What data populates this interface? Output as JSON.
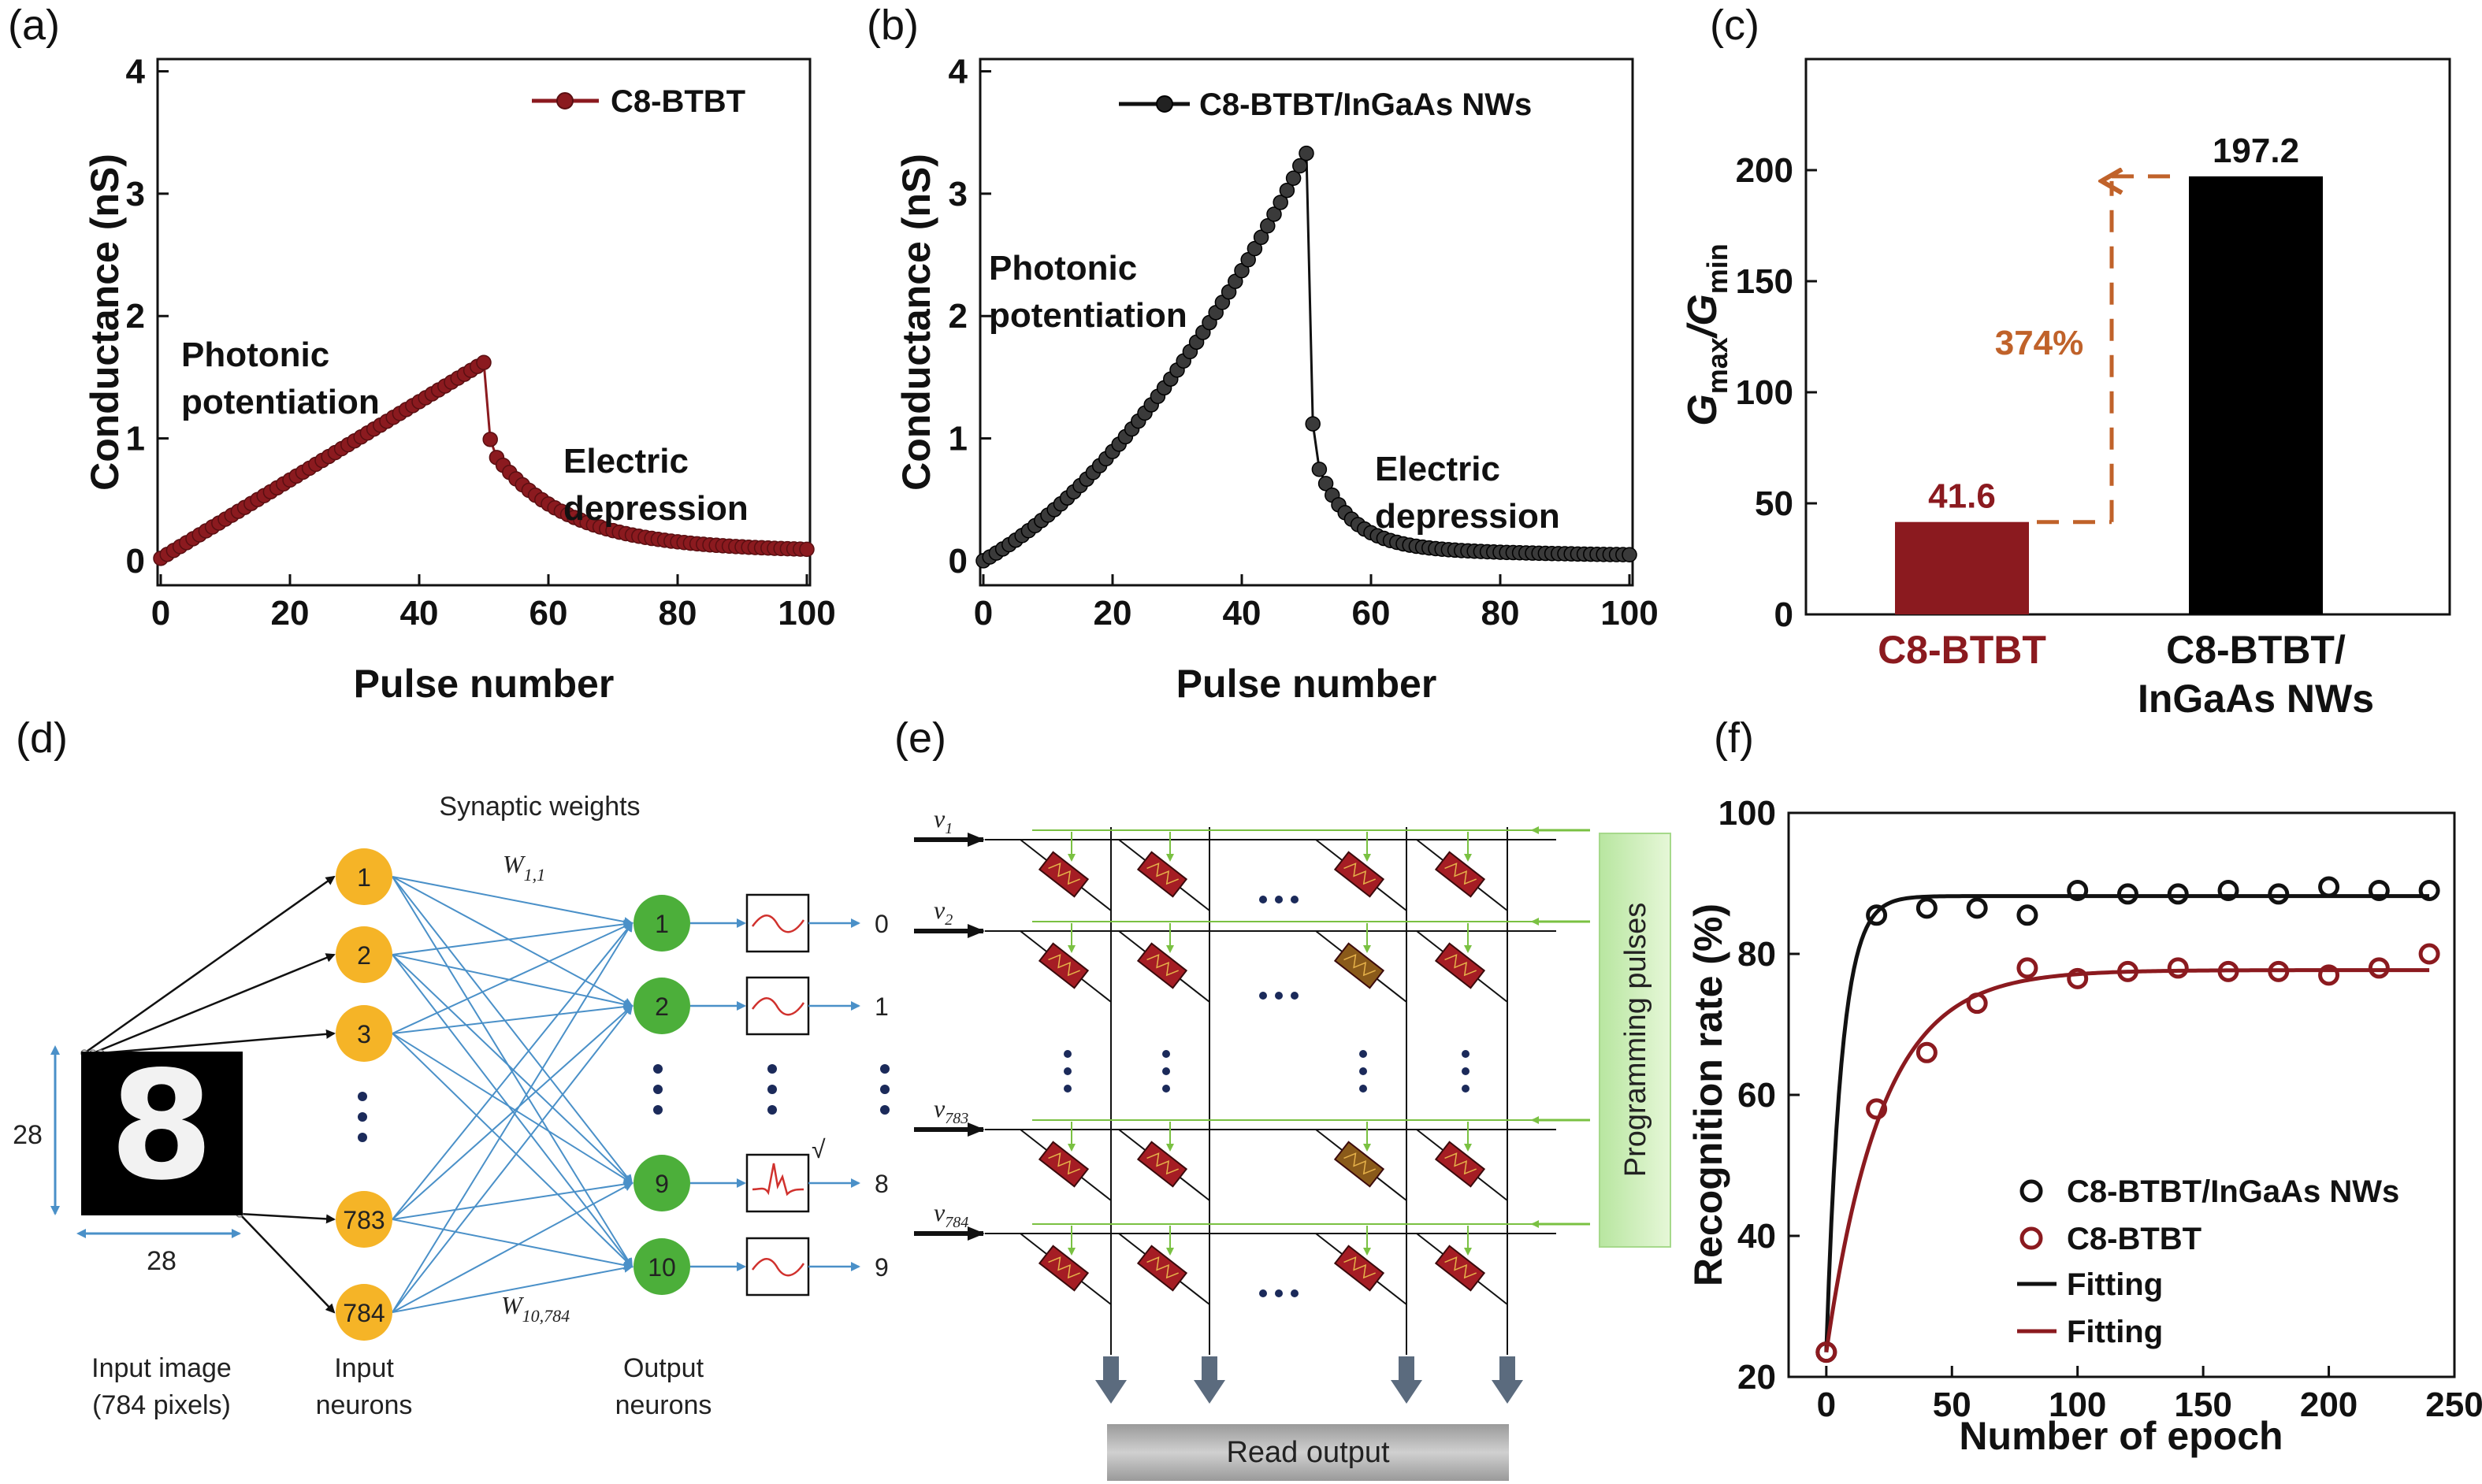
{
  "panels": {
    "a": "(a)",
    "b": "(b)",
    "c": "(c)",
    "d": "(d)",
    "e": "(e)",
    "f": "(f)"
  },
  "colors": {
    "red": "#8b1a1f",
    "black": "#111111",
    "orange_arrow": "#c0622a",
    "orange_node": "#f5b427",
    "green_node": "#4caf3a",
    "line_blue": "#4a90c8"
  },
  "chart_data": [
    {
      "id": "a",
      "type": "scatter",
      "title": "",
      "xlabel": "Pulse number",
      "ylabel": "Conductance (nS)",
      "xlim": [
        0,
        100
      ],
      "ylim": [
        -0.2,
        4.1
      ],
      "xticks": [
        "0",
        "20",
        "40",
        "60",
        "80",
        "100"
      ],
      "yticks": [
        "0",
        "1",
        "2",
        "3",
        "4"
      ],
      "legend": "C8-BTBT",
      "series": [
        {
          "name": "C8-BTBT",
          "color": "#8b1a1f",
          "peak_pulse": 50,
          "start": 0.02,
          "peak": 1.62,
          "end": 0.05
        }
      ],
      "annotations": {
        "potentiation": [
          "Photonic",
          "potentiation"
        ],
        "depression": [
          "Electric",
          "depression"
        ]
      }
    },
    {
      "id": "b",
      "type": "scatter",
      "title": "",
      "xlabel": "Pulse number",
      "ylabel": "Conductance (nS)",
      "xlim": [
        0,
        100
      ],
      "ylim": [
        -0.2,
        4.1
      ],
      "xticks": [
        "0",
        "20",
        "40",
        "60",
        "80",
        "100"
      ],
      "yticks": [
        "0",
        "1",
        "2",
        "3",
        "4"
      ],
      "legend": "C8-BTBT/InGaAs NWs",
      "series": [
        {
          "name": "C8-BTBT/InGaAs NWs",
          "color": "#111111",
          "peak_pulse": 50,
          "start": 0.0,
          "peak": 3.33,
          "end": 0.03
        }
      ],
      "annotations": {
        "potentiation": [
          "Photonic",
          "potentiation"
        ],
        "depression": [
          "Electric",
          "depression"
        ]
      }
    },
    {
      "id": "c",
      "type": "bar",
      "title": "",
      "ylabel_main": "G",
      "ylabel_sub1": "max",
      "ylabel_sep": "/G",
      "ylabel_sub2": "min",
      "ylim": [
        0,
        250
      ],
      "yticks": [
        "0",
        "50",
        "100",
        "150",
        "200"
      ],
      "categories": [
        "C8-BTBT",
        "C8-BTBT/ InGaAs NWs"
      ],
      "category_lines": [
        [
          "C8-BTBT"
        ],
        [
          "C8-BTBT/",
          "InGaAs NWs"
        ]
      ],
      "values": [
        41.6,
        197.2
      ],
      "value_labels": [
        "41.6",
        "197.2"
      ],
      "colors": [
        "#8b1a1f",
        "#000000"
      ],
      "increase_label": "374%"
    },
    {
      "id": "f",
      "type": "scatter",
      "title": "",
      "xlabel": "Number of epoch",
      "ylabel": "Recognition rate (%)",
      "xlim": [
        -15,
        250
      ],
      "ylim": [
        20,
        100
      ],
      "xticks": [
        "0",
        "50",
        "100",
        "150",
        "200",
        "250"
      ],
      "yticks": [
        "20",
        "40",
        "60",
        "80",
        "100"
      ],
      "series": [
        {
          "name": "C8-BTBT/InGaAs NWs",
          "color": "#111111",
          "x": [
            0,
            20,
            40,
            60,
            80,
            100,
            120,
            140,
            160,
            180,
            200,
            220,
            240
          ],
          "y": [
            23.5,
            85.5,
            86.5,
            86.5,
            85.5,
            89,
            88.5,
            88.5,
            89,
            88.5,
            89.5,
            89,
            89
          ]
        },
        {
          "name": "C8-BTBT",
          "color": "#8b1a1f",
          "x": [
            0,
            20,
            40,
            60,
            80,
            100,
            120,
            140,
            160,
            180,
            200,
            220,
            240
          ],
          "y": [
            23.5,
            58,
            66,
            73,
            78,
            76.5,
            77.5,
            78,
            77.5,
            77.5,
            77,
            78,
            80
          ]
        }
      ],
      "fits": [
        {
          "name": "Fitting",
          "color": "#111111",
          "y0": 23.5,
          "yinf": 88.2,
          "tau": 6
        },
        {
          "name": "Fitting",
          "color": "#8b1a1f",
          "y0": 23.5,
          "yinf": 77.7,
          "tau": 22
        }
      ],
      "legend": [
        "C8-BTBT/InGaAs NWs",
        "C8-BTBT",
        "Fitting",
        "Fitting"
      ]
    }
  ],
  "panel_d": {
    "title": "Synaptic weights",
    "input_nodes": [
      "1",
      "2",
      "3",
      "783",
      "784"
    ],
    "output_nodes": [
      "1",
      "2",
      "9",
      "10"
    ],
    "outputs": [
      "0",
      "1",
      "8",
      "9"
    ],
    "check": "√",
    "w_first": "W",
    "w_first_sub": "1,1",
    "w_last": "W",
    "w_last_sub": "10,784",
    "image_size_v": "28",
    "image_size_h": "28",
    "image_digit": "8",
    "caption_image": [
      "Input image",
      "(784 pixels)"
    ],
    "caption_input": [
      "Input",
      "neurons"
    ],
    "caption_output": [
      "Output",
      "neurons"
    ]
  },
  "panel_e": {
    "voltages": [
      {
        "v": "v",
        "sub": "1"
      },
      {
        "v": "v",
        "sub": "2"
      },
      {
        "v": "v",
        "sub": "783"
      },
      {
        "v": "v",
        "sub": "784"
      }
    ],
    "programming_label": "Programming pulses",
    "read_label": "Read output"
  }
}
